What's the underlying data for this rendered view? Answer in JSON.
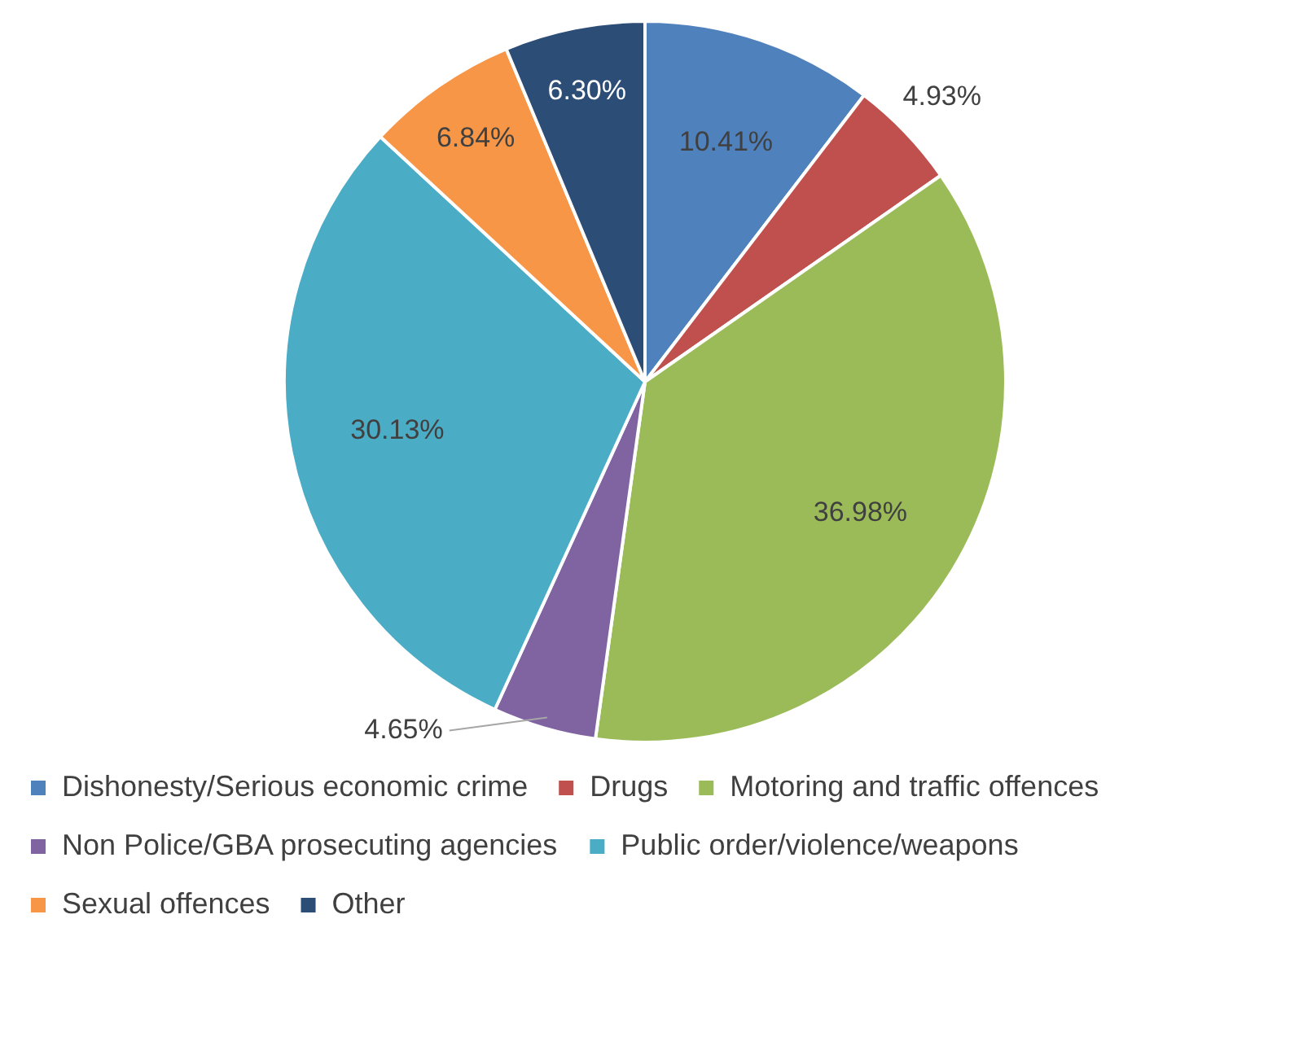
{
  "chart_data": {
    "type": "pie",
    "categories": [
      "Dishonesty/Serious economic crime",
      "Drugs",
      "Motoring and traffic offences",
      "Non Police/GBA prosecuting agencies",
      "Public order/violence/weapons",
      "Sexual offences",
      "Other"
    ],
    "values": [
      10.41,
      4.93,
      36.98,
      4.65,
      30.13,
      6.84,
      6.3
    ],
    "value_labels": [
      "10.41%",
      "4.93%",
      "36.98%",
      "4.65%",
      "30.13%",
      "6.84%",
      "6.30%"
    ],
    "colors": [
      "#4f81bd",
      "#c0504d",
      "#9bbb59",
      "#8064a2",
      "#4bacc6",
      "#f79646",
      "#2c4d75"
    ],
    "legend": "bottom"
  }
}
